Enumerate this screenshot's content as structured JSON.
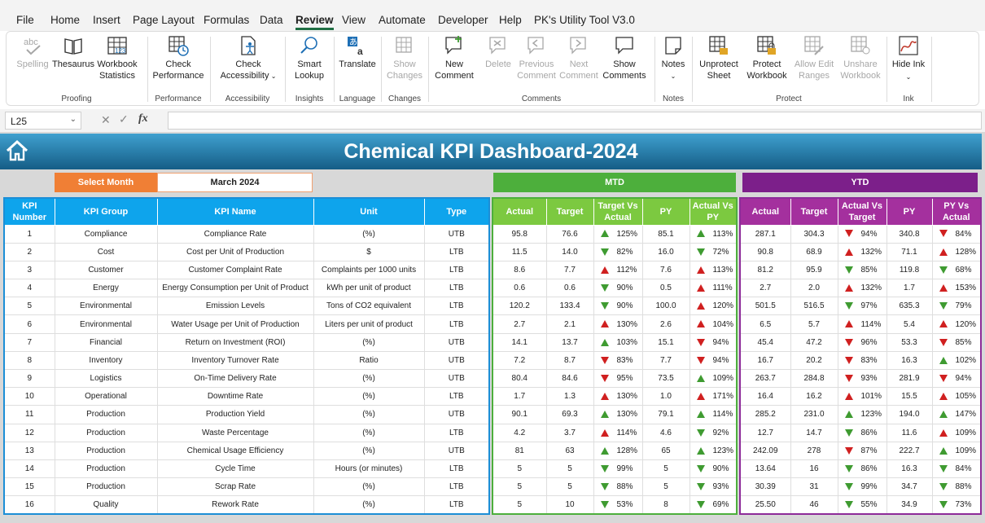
{
  "menu": [
    "File",
    "Home",
    "Insert",
    "Page Layout",
    "Formulas",
    "Data",
    "Review",
    "View",
    "Automate",
    "Developer",
    "Help",
    "PK's Utility Tool V3.0"
  ],
  "ribbon": {
    "proofing": {
      "label": "Proofing",
      "spelling": "Spelling",
      "thesaurus": "Thesaurus",
      "workbook_statistics": "Workbook Statistics"
    },
    "performance": {
      "label": "Performance",
      "check_performance": "Check Performance"
    },
    "accessibility": {
      "label": "Accessibility",
      "check_accessibility": "Check Accessibility"
    },
    "insights": {
      "label": "Insights",
      "smart_lookup": "Smart Lookup"
    },
    "language": {
      "label": "Language",
      "translate": "Translate"
    },
    "changes": {
      "label": "Changes",
      "show_changes": "Show Changes"
    },
    "comments": {
      "label": "Comments",
      "new_comment": "New Comment",
      "delete": "Delete",
      "previous_comment": "Previous Comment",
      "next_comment": "Next Comment",
      "show_comments": "Show Comments"
    },
    "notes": {
      "label": "Notes",
      "notes": "Notes"
    },
    "protect": {
      "label": "Protect",
      "unprotect_sheet": "Unprotect Sheet",
      "protect_workbook": "Protect Workbook",
      "allow_edit_ranges": "Allow Edit Ranges",
      "unshare_workbook": "Unshare Workbook"
    },
    "ink": {
      "label": "Ink",
      "hide_ink": "Hide Ink"
    }
  },
  "formula_bar": {
    "name_box": "L25",
    "fx": "fx",
    "formula": ""
  },
  "dashboard": {
    "title": "Chemical KPI Dashboard-2024",
    "select_month_label": "Select Month",
    "select_month_value": "March 2024",
    "mtd_label": "MTD",
    "ytd_label": "YTD",
    "info_headers": [
      "KPI Number",
      "KPI Group",
      "KPI Name",
      "Unit",
      "Type"
    ],
    "mtd_headers": [
      "Actual",
      "Target",
      "Target Vs Actual",
      "PY",
      "Actual Vs PY"
    ],
    "ytd_headers": [
      "Actual",
      "Target",
      "Actual Vs Target",
      "PY",
      "PY Vs Actual"
    ],
    "colors": {
      "up_good": "#3f9b31",
      "down_bad": "#d02020",
      "mtd": "#4daf3c",
      "ytd": "#7c1f8a",
      "info": "#0ea4ec",
      "select": "#f07f35"
    },
    "rows": [
      {
        "n": "1",
        "group": "Compliance",
        "name": "Compliance Rate",
        "unit": "(%)",
        "type": "UTB",
        "m_act": "95.8",
        "m_tgt": "76.6",
        "m_tva": "125%",
        "m_tva_icon": "up-green",
        "m_py": "85.1",
        "m_avp": "113%",
        "m_avp_icon": "up-green",
        "y_act": "287.1",
        "y_tgt": "304.3",
        "y_avt": "94%",
        "y_avt_icon": "down-red",
        "y_py": "340.8",
        "y_pva": "84%",
        "y_pva_icon": "down-red"
      },
      {
        "n": "2",
        "group": "Cost",
        "name": "Cost per Unit of Production",
        "unit": "$",
        "type": "LTB",
        "m_act": "11.5",
        "m_tgt": "14.0",
        "m_tva": "82%",
        "m_tva_icon": "down-green",
        "m_py": "16.0",
        "m_avp": "72%",
        "m_avp_icon": "down-green",
        "y_act": "90.8",
        "y_tgt": "68.9",
        "y_avt": "132%",
        "y_avt_icon": "up-red",
        "y_py": "71.1",
        "y_pva": "128%",
        "y_pva_icon": "up-red"
      },
      {
        "n": "3",
        "group": "Customer",
        "name": "Customer Complaint Rate",
        "unit": "Complaints per 1000 units",
        "type": "LTB",
        "m_act": "8.6",
        "m_tgt": "7.7",
        "m_tva": "112%",
        "m_tva_icon": "up-red",
        "m_py": "7.6",
        "m_avp": "113%",
        "m_avp_icon": "up-red",
        "y_act": "81.2",
        "y_tgt": "95.9",
        "y_avt": "85%",
        "y_avt_icon": "down-green",
        "y_py": "119.8",
        "y_pva": "68%",
        "y_pva_icon": "down-green"
      },
      {
        "n": "4",
        "group": "Energy",
        "name": "Energy Consumption per Unit of Product",
        "unit": "kWh per unit of product",
        "type": "LTB",
        "m_act": "0.6",
        "m_tgt": "0.6",
        "m_tva": "90%",
        "m_tva_icon": "down-green",
        "m_py": "0.5",
        "m_avp": "111%",
        "m_avp_icon": "up-red",
        "y_act": "2.7",
        "y_tgt": "2.0",
        "y_avt": "132%",
        "y_avt_icon": "up-red",
        "y_py": "1.7",
        "y_pva": "153%",
        "y_pva_icon": "up-red"
      },
      {
        "n": "5",
        "group": "Environmental",
        "name": "Emission Levels",
        "unit": "Tons of CO2 equivalent",
        "type": "LTB",
        "m_act": "120.2",
        "m_tgt": "133.4",
        "m_tva": "90%",
        "m_tva_icon": "down-green",
        "m_py": "100.0",
        "m_avp": "120%",
        "m_avp_icon": "up-red",
        "y_act": "501.5",
        "y_tgt": "516.5",
        "y_avt": "97%",
        "y_avt_icon": "down-green",
        "y_py": "635.3",
        "y_pva": "79%",
        "y_pva_icon": "down-green"
      },
      {
        "n": "6",
        "group": "Environmental",
        "name": "Water Usage per Unit of Production",
        "unit": "Liters per unit of product",
        "type": "LTB",
        "m_act": "2.7",
        "m_tgt": "2.1",
        "m_tva": "130%",
        "m_tva_icon": "up-red",
        "m_py": "2.6",
        "m_avp": "104%",
        "m_avp_icon": "up-red",
        "y_act": "6.5",
        "y_tgt": "5.7",
        "y_avt": "114%",
        "y_avt_icon": "up-red",
        "y_py": "5.4",
        "y_pva": "120%",
        "y_pva_icon": "up-red"
      },
      {
        "n": "7",
        "group": "Financial",
        "name": "Return on Investment (ROI)",
        "unit": "(%)",
        "type": "UTB",
        "m_act": "14.1",
        "m_tgt": "13.7",
        "m_tva": "103%",
        "m_tva_icon": "up-green",
        "m_py": "15.1",
        "m_avp": "94%",
        "m_avp_icon": "down-red",
        "y_act": "45.4",
        "y_tgt": "47.2",
        "y_avt": "96%",
        "y_avt_icon": "down-red",
        "y_py": "53.3",
        "y_pva": "85%",
        "y_pva_icon": "down-red"
      },
      {
        "n": "8",
        "group": "Inventory",
        "name": "Inventory Turnover Rate",
        "unit": "Ratio",
        "type": "UTB",
        "m_act": "7.2",
        "m_tgt": "8.7",
        "m_tva": "83%",
        "m_tva_icon": "down-red",
        "m_py": "7.7",
        "m_avp": "94%",
        "m_avp_icon": "down-red",
        "y_act": "16.7",
        "y_tgt": "20.2",
        "y_avt": "83%",
        "y_avt_icon": "down-red",
        "y_py": "16.3",
        "y_pva": "102%",
        "y_pva_icon": "up-green"
      },
      {
        "n": "9",
        "group": "Logistics",
        "name": "On-Time Delivery Rate",
        "unit": "(%)",
        "type": "UTB",
        "m_act": "80.4",
        "m_tgt": "84.6",
        "m_tva": "95%",
        "m_tva_icon": "down-red",
        "m_py": "73.5",
        "m_avp": "109%",
        "m_avp_icon": "up-green",
        "y_act": "263.7",
        "y_tgt": "284.8",
        "y_avt": "93%",
        "y_avt_icon": "down-red",
        "y_py": "281.9",
        "y_pva": "94%",
        "y_pva_icon": "down-red"
      },
      {
        "n": "10",
        "group": "Operational",
        "name": "Downtime Rate",
        "unit": "(%)",
        "type": "LTB",
        "m_act": "1.7",
        "m_tgt": "1.3",
        "m_tva": "130%",
        "m_tva_icon": "up-red",
        "m_py": "1.0",
        "m_avp": "171%",
        "m_avp_icon": "up-red",
        "y_act": "16.4",
        "y_tgt": "16.2",
        "y_avt": "101%",
        "y_avt_icon": "up-red",
        "y_py": "15.5",
        "y_pva": "105%",
        "y_pva_icon": "up-red"
      },
      {
        "n": "11",
        "group": "Production",
        "name": "Production Yield",
        "unit": "(%)",
        "type": "UTB",
        "m_act": "90.1",
        "m_tgt": "69.3",
        "m_tva": "130%",
        "m_tva_icon": "up-green",
        "m_py": "79.1",
        "m_avp": "114%",
        "m_avp_icon": "up-green",
        "y_act": "285.2",
        "y_tgt": "231.0",
        "y_avt": "123%",
        "y_avt_icon": "up-green",
        "y_py": "194.0",
        "y_pva": "147%",
        "y_pva_icon": "up-green"
      },
      {
        "n": "12",
        "group": "Production",
        "name": "Waste Percentage",
        "unit": "(%)",
        "type": "LTB",
        "m_act": "4.2",
        "m_tgt": "3.7",
        "m_tva": "114%",
        "m_tva_icon": "up-red",
        "m_py": "4.6",
        "m_avp": "92%",
        "m_avp_icon": "down-green",
        "y_act": "12.7",
        "y_tgt": "14.7",
        "y_avt": "86%",
        "y_avt_icon": "down-green",
        "y_py": "11.6",
        "y_pva": "109%",
        "y_pva_icon": "up-red"
      },
      {
        "n": "13",
        "group": "Production",
        "name": "Chemical Usage Efficiency",
        "unit": "(%)",
        "type": "UTB",
        "m_act": "81",
        "m_tgt": "63",
        "m_tva": "128%",
        "m_tva_icon": "up-green",
        "m_py": "65",
        "m_avp": "123%",
        "m_avp_icon": "up-green",
        "y_act": "242.09",
        "y_tgt": "278",
        "y_avt": "87%",
        "y_avt_icon": "down-red",
        "y_py": "222.7",
        "y_pva": "109%",
        "y_pva_icon": "up-green"
      },
      {
        "n": "14",
        "group": "Production",
        "name": "Cycle Time",
        "unit": "Hours (or minutes)",
        "type": "LTB",
        "m_act": "5",
        "m_tgt": "5",
        "m_tva": "99%",
        "m_tva_icon": "down-green",
        "m_py": "5",
        "m_avp": "90%",
        "m_avp_icon": "down-green",
        "y_act": "13.64",
        "y_tgt": "16",
        "y_avt": "86%",
        "y_avt_icon": "down-green",
        "y_py": "16.3",
        "y_pva": "84%",
        "y_pva_icon": "down-green"
      },
      {
        "n": "15",
        "group": "Production",
        "name": "Scrap Rate",
        "unit": "(%)",
        "type": "LTB",
        "m_act": "5",
        "m_tgt": "5",
        "m_tva": "88%",
        "m_tva_icon": "down-green",
        "m_py": "5",
        "m_avp": "93%",
        "m_avp_icon": "down-green",
        "y_act": "30.39",
        "y_tgt": "31",
        "y_avt": "99%",
        "y_avt_icon": "down-green",
        "y_py": "34.7",
        "y_pva": "88%",
        "y_pva_icon": "down-green"
      },
      {
        "n": "16",
        "group": "Quality",
        "name": "Rework Rate",
        "unit": "(%)",
        "type": "LTB",
        "m_act": "5",
        "m_tgt": "10",
        "m_tva": "53%",
        "m_tva_icon": "down-green",
        "m_py": "8",
        "m_avp": "69%",
        "m_avp_icon": "down-green",
        "y_act": "25.50",
        "y_tgt": "46",
        "y_avt": "55%",
        "y_avt_icon": "down-green",
        "y_py": "34.9",
        "y_pva": "73%",
        "y_pva_icon": "down-green"
      }
    ]
  }
}
